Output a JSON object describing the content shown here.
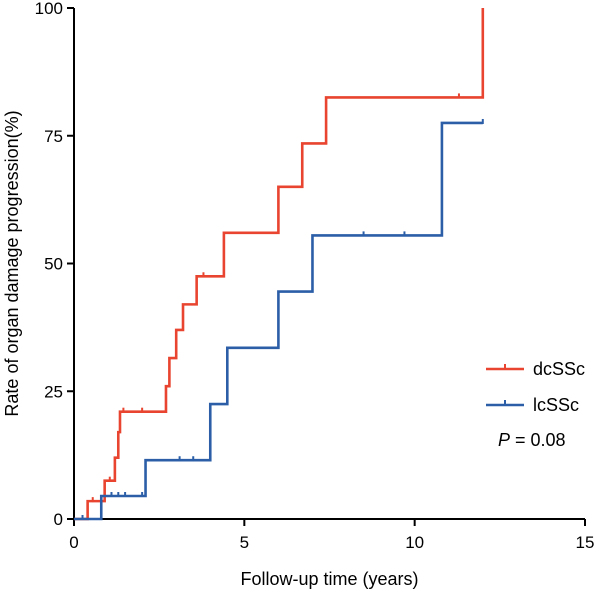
{
  "chart_data": {
    "type": "line",
    "xlabel": "Follow-up time (years)",
    "ylabel": "Rate of organ damage progression(%)",
    "xlim": [
      0,
      15
    ],
    "ylim": [
      0,
      100
    ],
    "x_ticks": [
      0,
      5,
      10,
      15
    ],
    "y_ticks": [
      0,
      25,
      50,
      75,
      100
    ],
    "x_tick_labels": [
      "0",
      "5",
      "10",
      "15"
    ],
    "y_tick_labels": [
      "0",
      "25",
      "50",
      "75",
      "100"
    ],
    "grid": false,
    "legend_position": "right",
    "step": true,
    "series": [
      {
        "name": "dcSSc",
        "color": "#e8442f",
        "x": [
          0,
          0.4,
          0.4,
          0.9,
          0.9,
          1.2,
          1.2,
          1.3,
          1.3,
          1.35,
          1.35,
          2.7,
          2.7,
          2.8,
          2.8,
          3.0,
          3.0,
          3.2,
          3.2,
          3.6,
          3.6,
          4.4,
          4.4,
          6.0,
          6.0,
          6.7,
          6.7,
          7.4,
          7.4,
          12.0,
          12.0
        ],
        "y": [
          0,
          0,
          3.5,
          3.5,
          7.5,
          7.5,
          12,
          12,
          17,
          17,
          21,
          21,
          26,
          26,
          31.5,
          31.5,
          37,
          37,
          42,
          42,
          47.5,
          47.5,
          56,
          56,
          65,
          65,
          73.5,
          73.5,
          82.5,
          82.5,
          100
        ],
        "censored": [
          {
            "x": 0.55,
            "y": 3.5
          },
          {
            "x": 1.05,
            "y": 7.5
          },
          {
            "x": 1.45,
            "y": 21
          },
          {
            "x": 2.0,
            "y": 21
          },
          {
            "x": 3.8,
            "y": 47.5
          },
          {
            "x": 11.3,
            "y": 82.5
          }
        ]
      },
      {
        "name": "lcSSc",
        "color": "#2b5ea7",
        "x": [
          0,
          0.8,
          0.8,
          2.1,
          2.1,
          4.0,
          4.0,
          4.5,
          4.5,
          6.0,
          6.0,
          7.0,
          7.0,
          10.8,
          10.8,
          12.0
        ],
        "y": [
          0,
          0,
          4.5,
          4.5,
          11.5,
          11.5,
          22.5,
          22.5,
          33.5,
          33.5,
          44.5,
          44.5,
          55.5,
          55.5,
          77.5,
          77.5
        ],
        "censored": [
          {
            "x": 0.25,
            "y": 0
          },
          {
            "x": 1.1,
            "y": 4.5
          },
          {
            "x": 1.3,
            "y": 4.5
          },
          {
            "x": 1.5,
            "y": 4.5
          },
          {
            "x": 2.0,
            "y": 4.5
          },
          {
            "x": 3.1,
            "y": 11.5
          },
          {
            "x": 3.5,
            "y": 11.5
          },
          {
            "x": 8.5,
            "y": 55.5
          },
          {
            "x": 9.7,
            "y": 55.5
          },
          {
            "x": 12.0,
            "y": 77.5
          }
        ]
      }
    ],
    "annotation": {
      "p_label": "P",
      "p_value_text": " = 0.08"
    }
  }
}
